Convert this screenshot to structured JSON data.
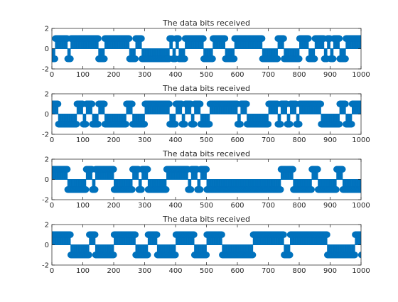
{
  "figure": {
    "background": "#ffffff"
  },
  "chart_data": [
    {
      "type": "scatter",
      "title": "The data bits received",
      "xlim": [
        0,
        1000
      ],
      "ylim": [
        -2,
        2
      ],
      "xticks": [
        0,
        100,
        200,
        300,
        400,
        500,
        600,
        700,
        800,
        900,
        1000
      ],
      "yticks": [
        -2,
        0,
        2
      ],
      "stem": true,
      "color": "#0072BD",
      "bit_period": 10,
      "bits": [
        -1,
        1,
        1,
        1,
        1,
        -1,
        1,
        1,
        1,
        1,
        1,
        1,
        1,
        1,
        1,
        -1,
        -1,
        1,
        1,
        1,
        1,
        1,
        1,
        1,
        1,
        -1,
        -1,
        1,
        1,
        -1,
        -1,
        -1,
        -1,
        -1,
        -1,
        -1,
        -1,
        -1,
        1,
        -1,
        1,
        -1,
        -1,
        1,
        1,
        1,
        1,
        1,
        1,
        -1,
        -1,
        -1,
        1,
        1,
        1,
        1,
        -1,
        -1,
        -1,
        1,
        1,
        1,
        1,
        1,
        1,
        1,
        1,
        1,
        -1,
        -1,
        -1,
        -1,
        -1,
        1,
        1,
        -1,
        -1,
        -1,
        -1,
        -1,
        1,
        1,
        1,
        -1,
        -1,
        1,
        1,
        1,
        -1,
        1,
        -1,
        1,
        1,
        -1,
        -1,
        1,
        1,
        1,
        1,
        1
      ]
    },
    {
      "type": "scatter",
      "title": "The data bits received",
      "xlim": [
        0,
        1000
      ],
      "ylim": [
        -2,
        2
      ],
      "xticks": [
        0,
        100,
        200,
        300,
        400,
        500,
        600,
        700,
        800,
        900,
        1000
      ],
      "yticks": [
        -2,
        0,
        2
      ],
      "stem": true,
      "color": "#0072BD",
      "bit_period": 10,
      "bits": [
        1,
        1,
        -1,
        -1,
        -1,
        -1,
        -1,
        -1,
        1,
        1,
        -1,
        1,
        1,
        -1,
        -1,
        1,
        1,
        -1,
        -1,
        -1,
        -1,
        -1,
        -1,
        -1,
        1,
        1,
        -1,
        -1,
        -1,
        -1,
        1,
        1,
        1,
        1,
        1,
        1,
        1,
        1,
        -1,
        -1,
        1,
        1,
        -1,
        1,
        1,
        -1,
        1,
        1,
        -1,
        -1,
        -1,
        1,
        1,
        1,
        1,
        1,
        1,
        1,
        1,
        1,
        -1,
        1,
        1,
        -1,
        -1,
        -1,
        -1,
        -1,
        -1,
        -1,
        1,
        1,
        1,
        -1,
        1,
        1,
        -1,
        1,
        1,
        -1,
        1,
        1,
        1,
        1,
        1,
        1,
        1,
        -1,
        -1,
        -1,
        -1,
        -1,
        -1,
        1,
        1,
        -1,
        -1,
        1,
        1,
        1
      ]
    },
    {
      "type": "scatter",
      "title": "The data bits received",
      "xlim": [
        0,
        1000
      ],
      "ylim": [
        -2,
        2
      ],
      "xticks": [
        0,
        100,
        200,
        300,
        400,
        500,
        600,
        700,
        800,
        900,
        1000
      ],
      "yticks": [
        -2,
        0,
        2
      ],
      "stem": true,
      "color": "#0072BD",
      "bit_period": 10,
      "bits": [
        1,
        1,
        1,
        1,
        1,
        -1,
        -1,
        -1,
        -1,
        -1,
        -1,
        1,
        1,
        -1,
        1,
        1,
        1,
        1,
        1,
        1,
        -1,
        -1,
        -1,
        -1,
        -1,
        -1,
        1,
        1,
        -1,
        1,
        1,
        -1,
        -1,
        -1,
        -1,
        -1,
        -1,
        1,
        1,
        1,
        1,
        1,
        1,
        1,
        -1,
        1,
        1,
        -1,
        1,
        1,
        -1,
        -1,
        -1,
        -1,
        -1,
        -1,
        -1,
        -1,
        -1,
        -1,
        -1,
        -1,
        -1,
        -1,
        -1,
        -1,
        -1,
        -1,
        -1,
        -1,
        -1,
        -1,
        -1,
        -1,
        1,
        1,
        1,
        1,
        -1,
        -1,
        -1,
        -1,
        -1,
        -1,
        1,
        1,
        -1,
        -1,
        -1,
        -1,
        -1,
        -1,
        1,
        1,
        -1,
        -1,
        -1,
        -1,
        -1,
        -1,
        -1
      ]
    },
    {
      "type": "scatter",
      "title": "The data bits received",
      "xlim": [
        0,
        1000
      ],
      "ylim": [
        -2,
        2
      ],
      "xticks": [
        0,
        100,
        200,
        300,
        400,
        500,
        600,
        700,
        800,
        900,
        1000
      ],
      "yticks": [
        -2,
        0,
        2
      ],
      "stem": true,
      "color": "#0072BD",
      "bit_period": 10,
      "bits": [
        1,
        1,
        1,
        1,
        1,
        1,
        -1,
        -1,
        -1,
        -1,
        -1,
        -1,
        1,
        1,
        -1,
        -1,
        -1,
        -1,
        -1,
        -1,
        1,
        1,
        1,
        1,
        1,
        1,
        1,
        -1,
        -1,
        -1,
        -1,
        1,
        1,
        1,
        -1,
        -1,
        -1,
        -1,
        -1,
        -1,
        1,
        1,
        1,
        1,
        1,
        1,
        -1,
        -1,
        -1,
        -1,
        1,
        1,
        1,
        1,
        1,
        -1,
        -1,
        -1,
        -1,
        -1,
        -1,
        -1,
        -1,
        -1,
        -1,
        1,
        1,
        1,
        1,
        1,
        1,
        1,
        1,
        1,
        1,
        -1,
        -1,
        1,
        1,
        1,
        1,
        1,
        1,
        1,
        1,
        1,
        1,
        1,
        1,
        -1,
        -1,
        -1,
        -1,
        -1,
        -1,
        -1,
        -1,
        -1,
        1,
        1,
        -1,
        -1
      ]
    }
  ]
}
